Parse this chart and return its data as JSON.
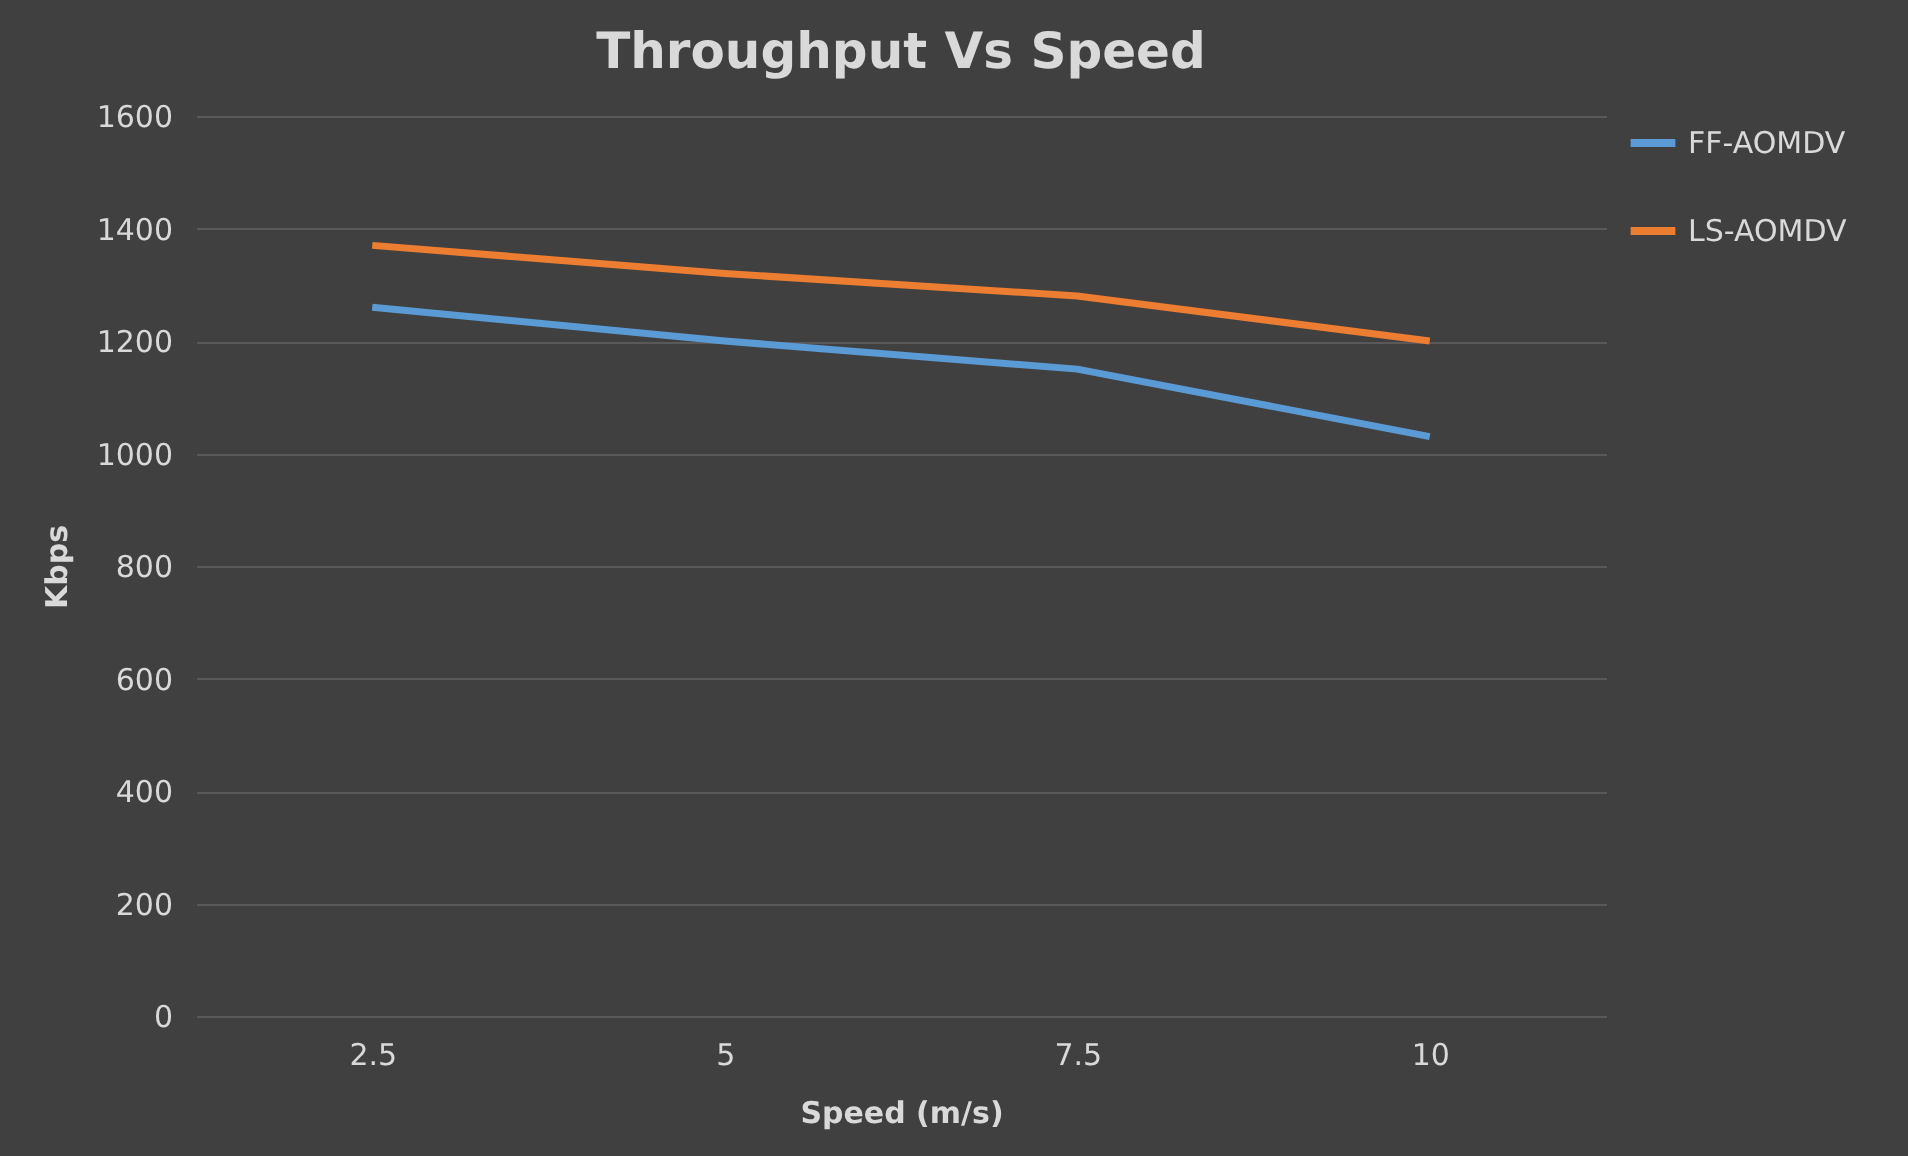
{
  "chart_data": {
    "type": "line",
    "title": "Throughput Vs Speed",
    "xlabel": "Speed (m/s)",
    "ylabel": "Kbps",
    "categories": [
      "2.5",
      "5",
      "7.5",
      "10"
    ],
    "series": [
      {
        "name": "FF-AOMDV",
        "color": "#5b9bd5",
        "values": [
          1260,
          1200,
          1150,
          1030
        ]
      },
      {
        "name": "LS-AOMDV",
        "color": "#ed7d31",
        "values": [
          1370,
          1320,
          1280,
          1200
        ]
      }
    ],
    "ylim": [
      0,
      1600
    ],
    "yticks": [
      0,
      200,
      400,
      600,
      800,
      1000,
      1200,
      1400,
      1600
    ],
    "grid": "y",
    "legend": "right",
    "marker": "none",
    "line_style": "solid"
  }
}
